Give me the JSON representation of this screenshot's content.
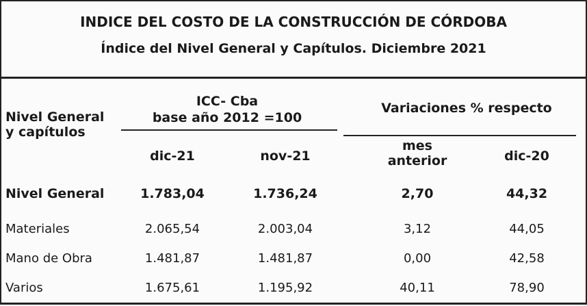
{
  "header": {
    "title": "INDICE DEL COSTO DE LA CONSTRUCCIÓN DE CÓRDOBA",
    "subtitle": "Índice del Nivel General y Capítulos.  Diciembre 2021"
  },
  "table": {
    "columns": {
      "row_label": [
        "Nivel General",
        "y capítulos"
      ],
      "index_group": [
        "ICC- Cba",
        "base año 2012 =100"
      ],
      "variation_group": "Variaciones % respecto",
      "sub": [
        [
          "dic-21"
        ],
        [
          "nov-21"
        ],
        [
          "mes",
          "anterior"
        ],
        [
          "dic-20"
        ]
      ]
    },
    "rows": [
      [
        "Nivel General",
        "1.783,04",
        "1.736,24",
        "2,70",
        "44,32"
      ],
      [
        "Materiales",
        "2.065,54",
        "2.003,04",
        "3,12",
        "44,05"
      ],
      [
        "Mano de Obra",
        "1.481,87",
        "1.481,87",
        "0,00",
        "42,58"
      ],
      [
        "Varios",
        "1.675,61",
        "1.195,92",
        "40,11",
        "78,90"
      ]
    ]
  }
}
